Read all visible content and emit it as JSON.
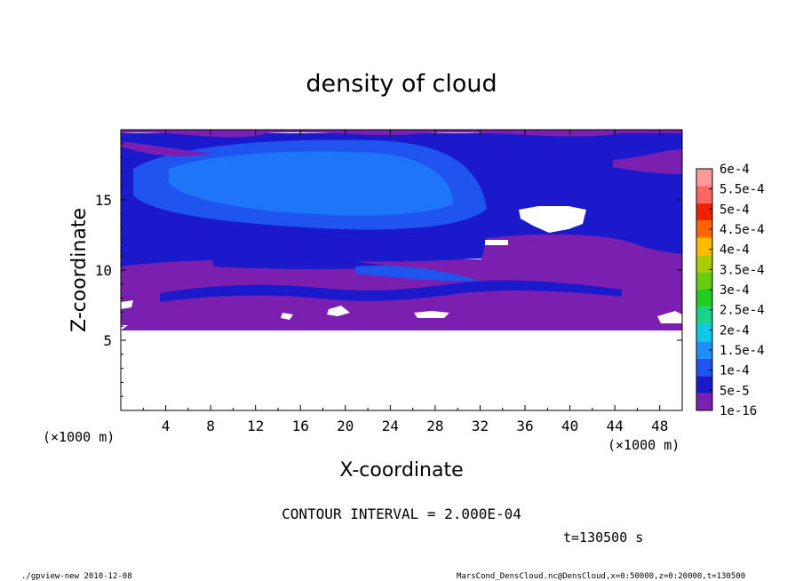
{
  "chart_data": {
    "type": "heatmap",
    "title": "density of cloud",
    "xlabel": "X-coordinate",
    "ylabel": "Z-coordinate",
    "x_units": "(×1000 m)",
    "z_units": "(×1000 m)",
    "xlim": [
      0,
      50
    ],
    "zlim": [
      0,
      20
    ],
    "x_ticks": [
      "4",
      "8",
      "12",
      "16",
      "20",
      "24",
      "28",
      "32",
      "36",
      "40",
      "44",
      "48"
    ],
    "z_ticks": [
      "5",
      "10",
      "15"
    ],
    "colorbar": {
      "labels": [
        "1e-16",
        "5e-5",
        "1e-4",
        "1.5e-4",
        "2e-4",
        "2.5e-4",
        "3e-4",
        "3.5e-4",
        "4e-4",
        "4.5e-4",
        "5e-4",
        "5.5e-4",
        "6e-4"
      ],
      "colors": [
        "#7a1fb0",
        "#1a1acc",
        "#1f55ee",
        "#1f8fff",
        "#11c8e6",
        "#18d28c",
        "#22cc22",
        "#66cc11",
        "#aacc00",
        "#ffbb00",
        "#ff6600",
        "#ee2200",
        "#ff6666",
        "#ff9999"
      ]
    },
    "cloud_base_z": 5.8,
    "cloud_top_z": 19.8,
    "contour_interval_note": "CONTOUR INTERVAL = 2.000E-04",
    "time_note": "t=130500 s"
  },
  "footer": {
    "left": "./gpview-new  2010-12-08",
    "right": "MarsCond_DensCloud.nc@DensCloud,x=0:50000,z=0:20000,t=130500"
  }
}
